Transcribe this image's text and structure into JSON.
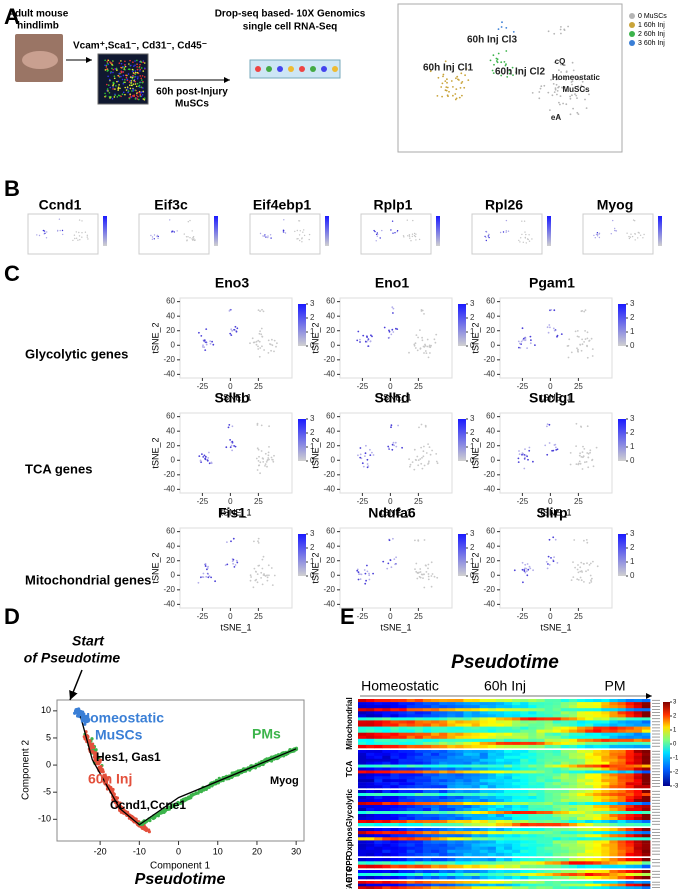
{
  "panel_labels": [
    "A",
    "B",
    "C",
    "D",
    "E"
  ],
  "panel_a": {
    "photo_caption": [
      "Adult mouse",
      "hindlimb"
    ],
    "sort_markers": "Vcam⁺,Sca1⁻, Cd31⁻, Cd45⁻",
    "timepoint": [
      "60h post-Injury",
      "MuSCs"
    ],
    "method": [
      "Drop-seq based- 10X Genomics",
      "single cell RNA-Seq"
    ],
    "clusters": [
      "60h Inj Cl3",
      "60h Inj Cl1",
      "60h Inj Cl2",
      "cQ",
      "Homeostatic",
      "MuSCs",
      "eA"
    ],
    "legend": [
      {
        "name": "0 MuSCs",
        "color": "#b5b5b5"
      },
      {
        "name": "1 60h Inj",
        "color": "#c9a43a"
      },
      {
        "name": "2 60h Inj",
        "color": "#3cb44b"
      },
      {
        "name": "3 60h Inj",
        "color": "#3a7fd6"
      }
    ]
  },
  "panel_b": {
    "genes": [
      "Ccnd1",
      "Eif3c",
      "Eif4ebp1",
      "Rplp1",
      "Rpl26",
      "Myog"
    ]
  },
  "panel_c": {
    "row_labels": [
      "Glycolytic genes",
      "TCA genes",
      "Mitochondrial genes"
    ],
    "genes": [
      [
        "Eno3",
        "Eno1",
        "Pgam1"
      ],
      [
        "Sdhb",
        "Sdhd",
        "Suclg1"
      ],
      [
        "Fis1",
        "Ndufa6",
        "Slirp"
      ]
    ],
    "x_label": "tSNE_1",
    "y_label": "tSNE_2",
    "xlim": [
      -45,
      55
    ],
    "ylim": [
      -45,
      65
    ],
    "xticks": [
      -25,
      0,
      25
    ],
    "yticks": [
      -40,
      -20,
      0,
      20,
      40,
      60
    ],
    "colorbar_ticks": [
      0,
      1,
      2,
      3
    ]
  },
  "panel_d": {
    "start": [
      "Start",
      "of Pseudotime"
    ],
    "homeostatic": [
      "Homeostatic",
      "MuSCs"
    ],
    "hes": "Hes1, Gas1",
    "inj": "60h Inj",
    "ccnd": "Ccnd1,Ccne1",
    "pms": "PMs",
    "myog": "Myog",
    "x_label": "Component 1",
    "y_label": "Component 2",
    "subtitle": "Pseudotime",
    "xlim": [
      -31,
      32
    ],
    "ylim": [
      -14,
      12
    ],
    "xticks": [
      -20,
      -10,
      0,
      10,
      20,
      30
    ],
    "yticks": [
      -10,
      -5,
      0,
      5,
      10
    ]
  },
  "panel_e": {
    "title": "Pseudotime",
    "stages": [
      "Homeostatic",
      "60h Inj",
      "PM"
    ],
    "row_labels": [
      "Mitochondrial",
      "TCA",
      "Glycolytic",
      "Oxphos",
      "PPP",
      "ETC",
      "FAO"
    ],
    "colorbar_ticks": [
      3,
      2,
      1,
      0,
      -1,
      -2,
      -3
    ]
  }
}
